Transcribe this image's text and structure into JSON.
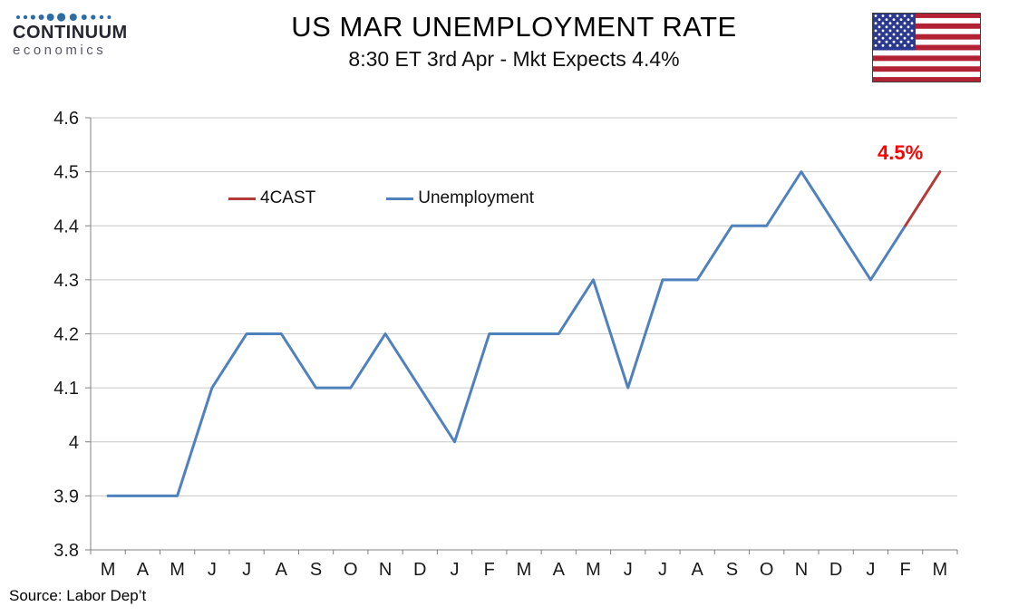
{
  "header": {
    "logo_line1": "CONTINUUM",
    "logo_line2": "economics",
    "title": "US MAR UNEMPLOYMENT RATE",
    "subtitle": "8:30 ET 3rd Apr - Mkt Expects 4.4%"
  },
  "chart_data": {
    "type": "line",
    "title": "US MAR UNEMPLOYMENT RATE",
    "categories": [
      "M",
      "A",
      "M",
      "J",
      "J",
      "A",
      "S",
      "O",
      "N",
      "D",
      "J",
      "F",
      "M",
      "A",
      "M",
      "J",
      "J",
      "A",
      "S",
      "O",
      "N",
      "D",
      "J",
      "F",
      "M"
    ],
    "series": [
      {
        "name": "Unemployment",
        "color": "#4f81bd",
        "values": [
          3.9,
          3.9,
          3.9,
          4.1,
          4.2,
          4.2,
          4.1,
          4.1,
          4.2,
          4.1,
          4.0,
          4.2,
          4.2,
          4.2,
          4.3,
          4.1,
          4.3,
          4.3,
          4.4,
          4.4,
          4.5,
          4.4,
          4.3,
          4.4,
          null
        ]
      },
      {
        "name": "4CAST",
        "color": "#b23b38",
        "values": [
          null,
          null,
          null,
          null,
          null,
          null,
          null,
          null,
          null,
          null,
          null,
          null,
          null,
          null,
          null,
          null,
          null,
          null,
          null,
          null,
          null,
          null,
          null,
          4.4,
          4.5
        ]
      }
    ],
    "legend": [
      {
        "label": "4CAST",
        "color": "#b23b38"
      },
      {
        "label": "Unemployment",
        "color": "#4f81bd"
      }
    ],
    "ylim": [
      3.8,
      4.6
    ],
    "yticks": [
      "4.6",
      "4.5",
      "4.4",
      "4.3",
      "4.2",
      "4.1",
      "4",
      "3.9",
      "3.8"
    ],
    "ytick_values": [
      4.6,
      4.5,
      4.4,
      4.3,
      4.2,
      4.1,
      4.0,
      3.9,
      3.8
    ],
    "grid": true,
    "grid_color": "#c8c8c8",
    "axis_color": "#808080",
    "annotation": {
      "text": "4.5%",
      "color": "#ff0000"
    }
  },
  "flag": {
    "name": "us-flag",
    "red": "#b22234",
    "blue": "#2b3990",
    "white": "#ffffff"
  },
  "logo_dot_color": "#2e6da4",
  "footer": {
    "source": "Source: Labor Dep’t"
  }
}
